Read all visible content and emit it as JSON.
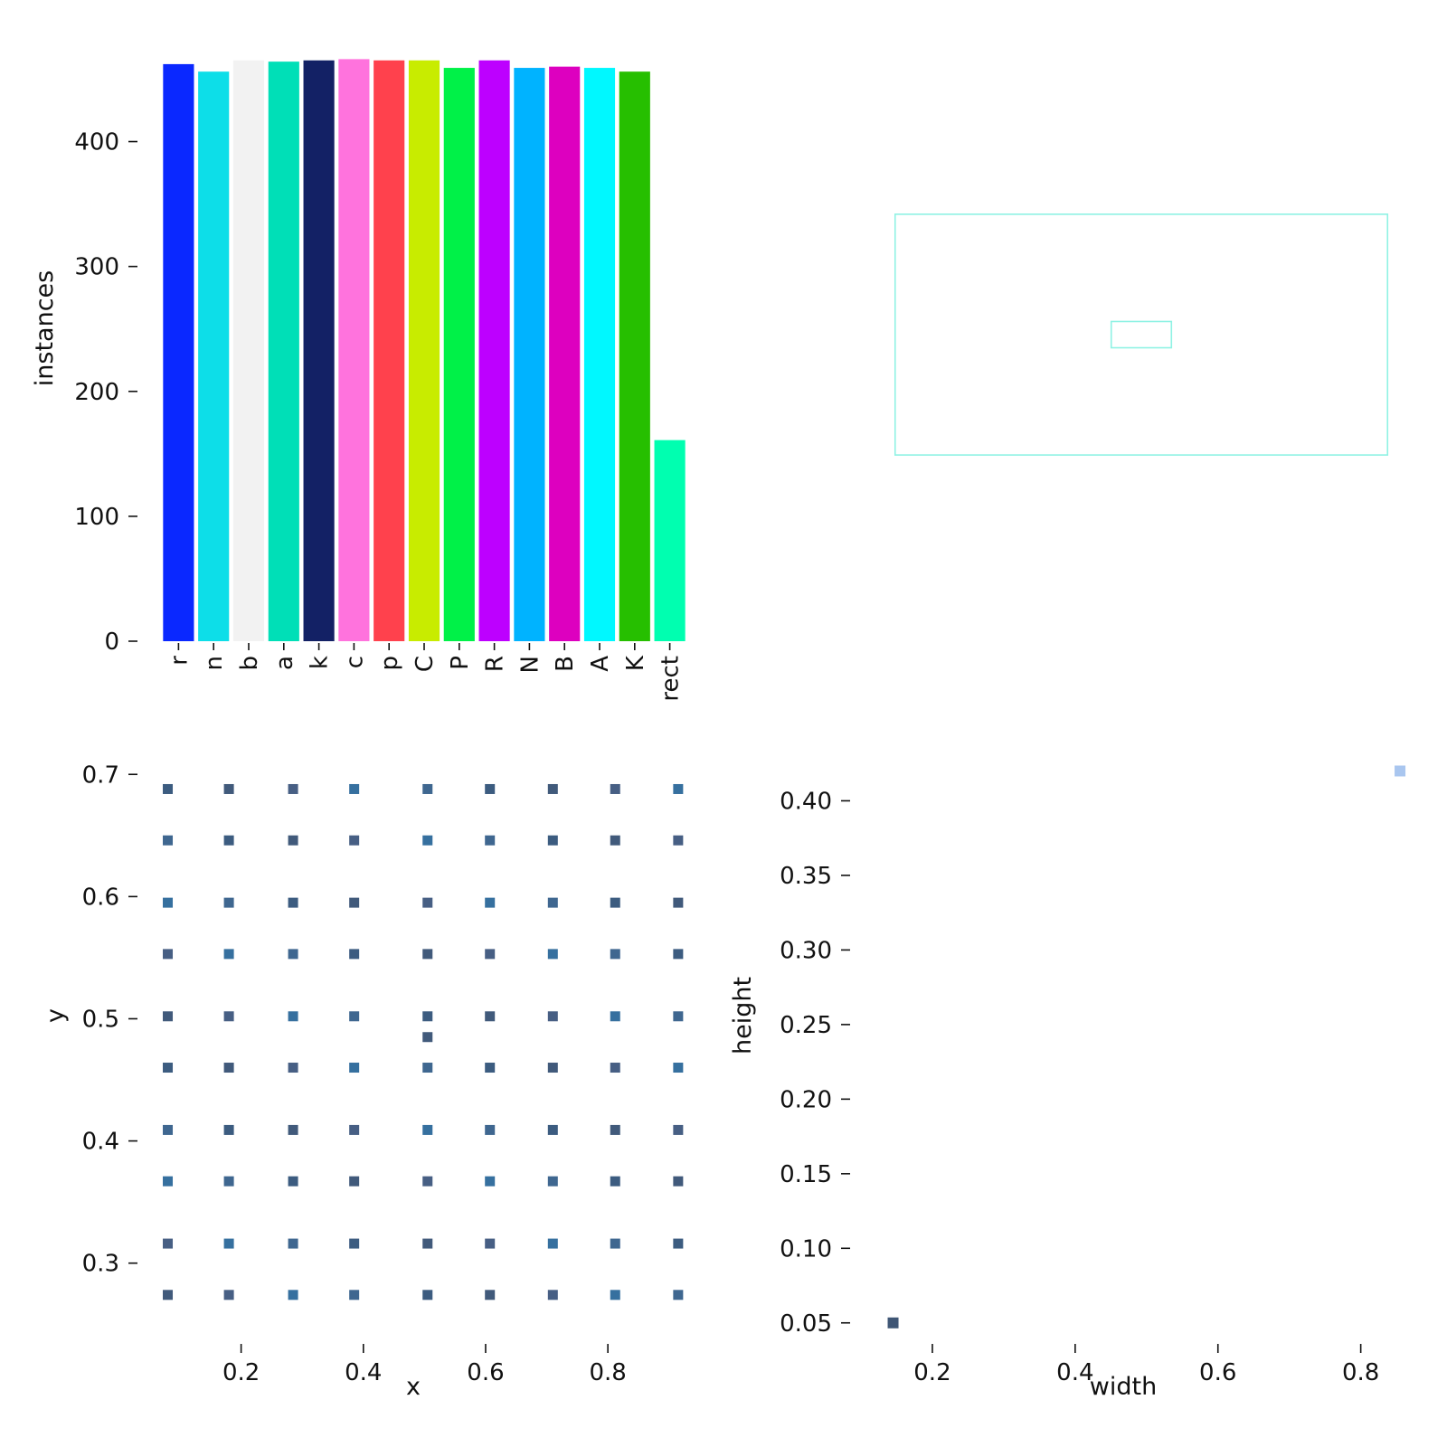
{
  "chart_data": [
    {
      "id": "instances",
      "type": "bar",
      "ylabel": "instances",
      "xlabel": "",
      "ylim": [
        0,
        467
      ],
      "yticks": [
        "0",
        "100",
        "200",
        "300",
        "400"
      ],
      "categories": [
        "r",
        "n",
        "b",
        "a",
        "k",
        "c",
        "p",
        "C",
        "P",
        "R",
        "N",
        "B",
        "A",
        "K",
        "rect"
      ],
      "values": [
        462,
        456,
        465,
        464,
        465,
        466,
        465,
        465,
        459,
        465,
        459,
        460,
        459,
        456,
        161
      ],
      "colors": [
        "#0a28ff",
        "#0ddee8",
        "#f2f2f2",
        "#00dfb7",
        "#132165",
        "#ff73dd",
        "#ff414d",
        "#c8ec00",
        "#00f148",
        "#bd00ff",
        "#00b3ff",
        "#dd00bf",
        "#00f8ff",
        "#26bf00",
        "#00ffb0"
      ]
    },
    {
      "id": "boxes",
      "type": "box-overlay",
      "box_color": "#8ff2e4",
      "boxes": [
        {
          "w": 0.9,
          "h": 0.44
        },
        {
          "w": 0.11,
          "h": 0.048
        }
      ]
    },
    {
      "id": "xy",
      "type": "heatmap",
      "xlabel": "x",
      "ylabel": "y",
      "xlim": [
        0.06,
        0.93
      ],
      "ylim": [
        0.245,
        0.715
      ],
      "xticks": [
        "0.2",
        "0.4",
        "0.6",
        "0.8"
      ],
      "yticks": [
        "0.3",
        "0.4",
        "0.5",
        "0.6",
        "0.7"
      ],
      "x_values": [
        0.08,
        0.18,
        0.285,
        0.385,
        0.505,
        0.607,
        0.71,
        0.812,
        0.915
      ],
      "y_values": [
        0.688,
        0.646,
        0.595,
        0.553,
        0.502,
        0.46,
        0.409,
        0.367,
        0.316,
        0.274
      ],
      "extra_points": [
        {
          "x": 0.505,
          "y": 0.485
        }
      ],
      "color": "#415a7b"
    },
    {
      "id": "wh",
      "type": "heatmap",
      "xlabel": "width",
      "ylabel": "height",
      "xlim": [
        0.1,
        0.86
      ],
      "ylim": [
        0.045,
        0.43
      ],
      "xticks": [
        "0.2",
        "0.4",
        "0.6",
        "0.8"
      ],
      "yticks": [
        "0.05",
        "0.10",
        "0.15",
        "0.20",
        "0.25",
        "0.30",
        "0.35",
        "0.40"
      ],
      "points": [
        {
          "x": 0.145,
          "y": 0.05,
          "color": "#3f5675"
        },
        {
          "x": 0.855,
          "y": 0.42,
          "color": "#a9c6ef"
        }
      ]
    }
  ]
}
